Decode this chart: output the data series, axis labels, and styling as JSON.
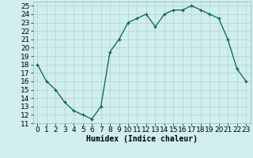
{
  "x": [
    0,
    1,
    2,
    3,
    4,
    5,
    6,
    7,
    8,
    9,
    10,
    11,
    12,
    13,
    14,
    15,
    16,
    17,
    18,
    19,
    20,
    21,
    22,
    23
  ],
  "y": [
    18,
    16,
    15,
    13.5,
    12.5,
    12,
    11.5,
    13,
    19.5,
    21,
    23,
    23.5,
    24,
    22.5,
    24,
    24.5,
    24.5,
    25,
    24.5,
    24,
    23.5,
    21,
    17.5,
    16
  ],
  "line_color": "#006060",
  "marker": "+",
  "bg_color": "#d0eeed",
  "grid_color": "#b0d0ce",
  "xlabel": "Humidex (Indice chaleur)",
  "xlim": [
    -0.5,
    23.5
  ],
  "ylim": [
    11,
    25.5
  ],
  "yticks": [
    11,
    12,
    13,
    14,
    15,
    16,
    17,
    18,
    19,
    20,
    21,
    22,
    23,
    24,
    25
  ],
  "xticks": [
    0,
    1,
    2,
    3,
    4,
    5,
    6,
    7,
    8,
    9,
    10,
    11,
    12,
    13,
    14,
    15,
    16,
    17,
    18,
    19,
    20,
    21,
    22,
    23
  ],
  "label_fontsize": 7,
  "tick_fontsize": 6.5
}
